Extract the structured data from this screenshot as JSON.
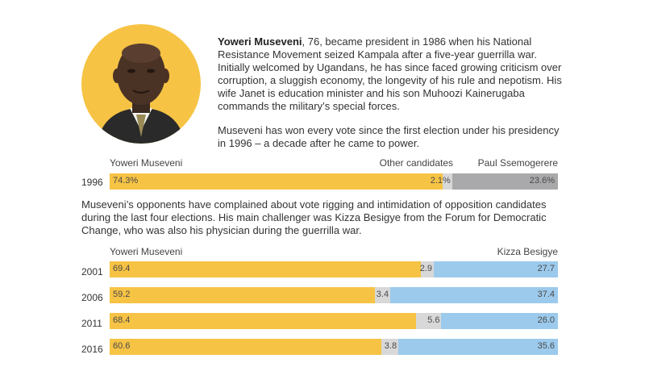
{
  "profile": {
    "name": "Yoweri Museveni",
    "bio_rest": ", 76, became president in 1986 when his National Resistance Movement seized Kampala after a five-year guerrilla war. Initially welcomed by Ugandans, he has since faced growing criticism over corruption, a sluggish economy, the longevity of his rule and nepotism. His wife Janet is education minister and his son Muhoozi Kainerugaba commands the military’s special forces.",
    "votes_text": "Museveni has won every vote since the first election under his presidency in 1996 – a decade after he came to power."
  },
  "opponents_text": "Museveni’s opponents have complained about vote rigging and intimidation of opposition candidates during the last four elections. His main challenger was Kizza Besigye from the Forum for Democratic Change, who was also his physician during the guerrilla war.",
  "colors": {
    "museveni": "#f6c344",
    "other": "#d8d8d8",
    "ssemogerere": "#a9a9ab",
    "besigye": "#9ccaec",
    "portrait_bg": "#f6c344"
  },
  "chart_data": [
    {
      "type": "bar",
      "stacked": true,
      "orientation": "horizontal",
      "categories": [
        "1996"
      ],
      "series": [
        {
          "name": "Yoweri Museveni",
          "values": [
            74.3
          ],
          "labels": [
            "74.3%"
          ]
        },
        {
          "name": "Other candidates",
          "values": [
            2.1
          ],
          "labels": [
            "2.1%"
          ]
        },
        {
          "name": "Paul Ssemogerere",
          "values": [
            23.6
          ],
          "labels": [
            "23.6%"
          ]
        }
      ],
      "xlim": [
        0,
        100
      ]
    },
    {
      "type": "bar",
      "stacked": true,
      "orientation": "horizontal",
      "categories": [
        "2001",
        "2006",
        "2011",
        "2016"
      ],
      "series": [
        {
          "name": "Yoweri Museveni",
          "values": [
            69.4,
            59.2,
            68.4,
            60.6
          ],
          "labels": [
            "69.4",
            "59.2",
            "68.4",
            "60.6"
          ]
        },
        {
          "name": "",
          "values": [
            2.9,
            3.4,
            5.6,
            3.8
          ],
          "labels": [
            "2.9",
            "3.4",
            "5.6",
            "3.8"
          ]
        },
        {
          "name": "Kizza Besigye",
          "values": [
            27.7,
            37.4,
            26.0,
            35.6
          ],
          "labels": [
            "27.7",
            "37.4",
            "26.0",
            "35.6"
          ]
        }
      ],
      "xlim": [
        0,
        100
      ]
    }
  ]
}
